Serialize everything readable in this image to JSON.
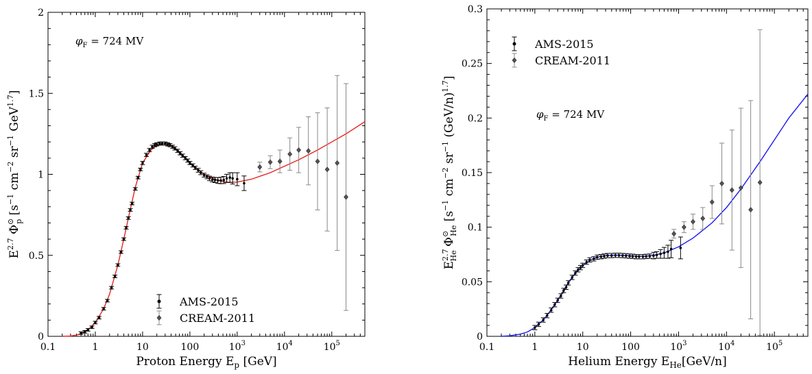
{
  "chart_data": [
    {
      "type": "scatter",
      "xscale": "log",
      "xlim": [
        0.1,
        500000
      ],
      "ylim": [
        0,
        2
      ],
      "x_ticks": [
        {
          "v": 0.1,
          "base": "0.1"
        },
        {
          "v": 1,
          "base": "1"
        },
        {
          "v": 10,
          "base": "10"
        },
        {
          "v": 100,
          "base": "100"
        },
        {
          "v": 1000,
          "base": "10",
          "exp": "3"
        },
        {
          "v": 10000,
          "base": "10",
          "exp": "4"
        },
        {
          "v": 100000,
          "base": "10",
          "exp": "5"
        }
      ],
      "y_ticks": [
        {
          "v": 0,
          "label": "0"
        },
        {
          "v": 0.5,
          "label": "0.5"
        },
        {
          "v": 1,
          "label": "1"
        },
        {
          "v": 1.5,
          "label": "1.5"
        },
        {
          "v": 2,
          "label": "2"
        }
      ],
      "xlabel": "Proton Energy E",
      "xlabel_sub": "p",
      "xlabel_unit": " [GeV]",
      "ylabel": "E2.7 Φp⊙ [s−1 cm−2 sr−1 GeV1.7]",
      "annotation": "φF = 724 MV",
      "legend": [
        "AMS-2015",
        "CREAM-2011"
      ],
      "legend_position": "lower-center",
      "colors": {
        "model": "#e8231f",
        "ams": "#000000",
        "cream": "#888888",
        "model_band": "#8a1b1b"
      },
      "model_curve": {
        "x": [
          0.2,
          0.3,
          0.4,
          0.5,
          0.7,
          1,
          1.5,
          2,
          3,
          4,
          5,
          7,
          10,
          15,
          20,
          30,
          40,
          50,
          70,
          100,
          150,
          200,
          300,
          500,
          700,
          1000,
          2000,
          5000,
          10000,
          20000,
          50000,
          100000,
          200000,
          500000
        ],
        "y": [
          0.0,
          0.002,
          0.008,
          0.016,
          0.04,
          0.085,
          0.17,
          0.26,
          0.44,
          0.6,
          0.73,
          0.92,
          1.07,
          1.15,
          1.18,
          1.19,
          1.18,
          1.16,
          1.12,
          1.07,
          1.03,
          1.0,
          0.975,
          0.955,
          0.95,
          0.952,
          0.97,
          1.01,
          1.05,
          1.09,
          1.15,
          1.2,
          1.25,
          1.325
        ]
      },
      "series": [
        {
          "name": "AMS-2015",
          "x": [
            0.5,
            0.6,
            0.7,
            0.85,
            1,
            1.2,
            1.5,
            1.8,
            2.2,
            2.6,
            3,
            3.5,
            4,
            4.5,
            5,
            5.5,
            6,
            7,
            8,
            9,
            10,
            12,
            14,
            16,
            18,
            20,
            23,
            26,
            30,
            34,
            38,
            43,
            48,
            55,
            62,
            70,
            80,
            90,
            100,
            115,
            130,
            150,
            170,
            200,
            230,
            260,
            300,
            340,
            390,
            450,
            520,
            600,
            700,
            800,
            1000,
            1400
          ],
          "y": [
            0.02,
            0.028,
            0.04,
            0.056,
            0.085,
            0.115,
            0.17,
            0.22,
            0.3,
            0.37,
            0.44,
            0.52,
            0.6,
            0.67,
            0.73,
            0.78,
            0.82,
            0.91,
            0.98,
            1.03,
            1.07,
            1.12,
            1.15,
            1.17,
            1.18,
            1.185,
            1.19,
            1.19,
            1.19,
            1.185,
            1.18,
            1.17,
            1.16,
            1.145,
            1.13,
            1.115,
            1.1,
            1.085,
            1.07,
            1.055,
            1.04,
            1.025,
            1.01,
            0.995,
            0.985,
            0.975,
            0.968,
            0.965,
            0.962,
            0.962,
            0.965,
            0.975,
            0.98,
            0.975,
            0.97,
            0.945
          ],
          "err": [
            0.008,
            0.008,
            0.008,
            0.008,
            0.008,
            0.008,
            0.008,
            0.008,
            0.008,
            0.008,
            0.008,
            0.008,
            0.008,
            0.008,
            0.008,
            0.008,
            0.008,
            0.008,
            0.008,
            0.008,
            0.01,
            0.01,
            0.01,
            0.01,
            0.01,
            0.01,
            0.01,
            0.01,
            0.01,
            0.01,
            0.01,
            0.01,
            0.01,
            0.01,
            0.01,
            0.01,
            0.01,
            0.01,
            0.01,
            0.01,
            0.01,
            0.012,
            0.012,
            0.012,
            0.012,
            0.014,
            0.015,
            0.016,
            0.018,
            0.02,
            0.022,
            0.025,
            0.03,
            0.035,
            0.04,
            0.045
          ]
        },
        {
          "name": "CREAM-2011",
          "x": [
            3000,
            5000,
            8000,
            13000,
            20000,
            32000,
            50000,
            80000,
            130000,
            200000
          ],
          "y": [
            1.045,
            1.075,
            1.08,
            1.125,
            1.15,
            1.145,
            1.08,
            1.03,
            1.07,
            0.86
          ],
          "err": [
            0.03,
            0.04,
            0.07,
            0.1,
            0.14,
            0.21,
            0.3,
            0.38,
            0.54,
            0.7
          ]
        }
      ]
    },
    {
      "type": "scatter",
      "xscale": "log",
      "xlim": [
        0.1,
        500000
      ],
      "ylim": [
        0,
        0.3
      ],
      "x_ticks": [
        {
          "v": 0.1,
          "base": "0.1"
        },
        {
          "v": 1,
          "base": "1"
        },
        {
          "v": 10,
          "base": "10"
        },
        {
          "v": 100,
          "base": "100"
        },
        {
          "v": 1000,
          "base": "10",
          "exp": "3"
        },
        {
          "v": 10000,
          "base": "10",
          "exp": "4"
        },
        {
          "v": 100000,
          "base": "10",
          "exp": "5"
        }
      ],
      "y_ticks": [
        {
          "v": 0,
          "label": "0"
        },
        {
          "v": 0.05,
          "label": "0.05"
        },
        {
          "v": 0.1,
          "label": "0.1"
        },
        {
          "v": 0.15,
          "label": "0.15"
        },
        {
          "v": 0.2,
          "label": "0.2"
        },
        {
          "v": 0.25,
          "label": "0.25"
        },
        {
          "v": 0.3,
          "label": "0.3"
        }
      ],
      "xlabel": "Helium Energy E",
      "xlabel_sub": "He",
      "xlabel_unit": "[GeV/n]",
      "ylabel": "E2.7He ΦHe⊙ [s−1 cm−2 sr−1 (GeV/n)1.7]",
      "annotation": "φF = 724 MV",
      "legend": [
        "AMS-2015",
        "CREAM-2011"
      ],
      "legend_position": "top-left",
      "colors": {
        "model": "#1a1aee",
        "ams": "#000000",
        "cream": "#888888",
        "model_band": "#1a1aee"
      },
      "model_curve": {
        "x": [
          0.2,
          0.3,
          0.5,
          0.7,
          1,
          1.5,
          2,
          3,
          4,
          5,
          7,
          10,
          15,
          20,
          30,
          50,
          70,
          100,
          150,
          200,
          300,
          500,
          1000,
          2000,
          5000,
          10000,
          20000,
          50000,
          100000,
          200000,
          500000
        ],
        "y": [
          0.0,
          0.0005,
          0.002,
          0.004,
          0.008,
          0.015,
          0.022,
          0.033,
          0.042,
          0.049,
          0.058,
          0.065,
          0.07,
          0.0725,
          0.074,
          0.0745,
          0.0742,
          0.0738,
          0.0735,
          0.0735,
          0.0742,
          0.0765,
          0.082,
          0.09,
          0.104,
          0.118,
          0.135,
          0.16,
          0.18,
          0.2,
          0.222
        ]
      },
      "series": [
        {
          "name": "AMS-2015",
          "x": [
            1,
            1.2,
            1.5,
            1.8,
            2.2,
            2.6,
            3,
            3.5,
            4,
            4.5,
            5,
            6,
            7,
            8,
            9,
            10,
            12,
            14,
            17,
            20,
            24,
            28,
            33,
            40,
            48,
            57,
            68,
            80,
            95,
            110,
            130,
            150,
            180,
            210,
            250,
            300,
            350,
            420,
            500,
            600,
            700,
            1100
          ],
          "y": [
            0.008,
            0.011,
            0.015,
            0.019,
            0.024,
            0.029,
            0.033,
            0.037,
            0.042,
            0.045,
            0.049,
            0.054,
            0.058,
            0.061,
            0.063,
            0.065,
            0.068,
            0.07,
            0.071,
            0.0725,
            0.073,
            0.0735,
            0.074,
            0.074,
            0.0742,
            0.0742,
            0.074,
            0.0738,
            0.0735,
            0.0733,
            0.073,
            0.073,
            0.073,
            0.0732,
            0.0735,
            0.074,
            0.0745,
            0.0755,
            0.0765,
            0.0775,
            0.08,
            0.081
          ],
          "err": [
            0.002,
            0.002,
            0.002,
            0.002,
            0.002,
            0.002,
            0.002,
            0.002,
            0.002,
            0.002,
            0.002,
            0.002,
            0.002,
            0.002,
            0.002,
            0.002,
            0.002,
            0.002,
            0.002,
            0.002,
            0.002,
            0.002,
            0.002,
            0.002,
            0.002,
            0.002,
            0.002,
            0.002,
            0.002,
            0.002,
            0.002,
            0.002,
            0.002,
            0.002,
            0.002,
            0.003,
            0.003,
            0.004,
            0.005,
            0.006,
            0.008,
            0.01
          ]
        },
        {
          "name": "CREAM-2011",
          "x": [
            800,
            1300,
            2000,
            3200,
            5000,
            8000,
            13000,
            20000,
            32000,
            50000
          ],
          "y": [
            0.094,
            0.1,
            0.105,
            0.108,
            0.123,
            0.14,
            0.134,
            0.136,
            0.116,
            0.141
          ],
          "err": [
            0.004,
            0.005,
            0.007,
            0.01,
            0.015,
            0.037,
            0.055,
            0.073,
            0.1,
            0.14
          ]
        }
      ]
    }
  ]
}
